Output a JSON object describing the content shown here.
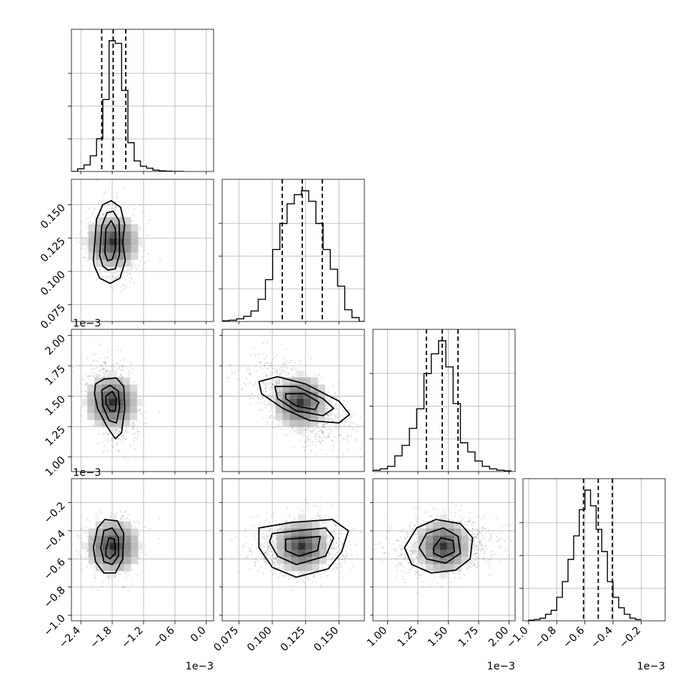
{
  "chart_data": {
    "type": "corner",
    "grid": true,
    "parameters": [
      {
        "ticks": [
          -2.4,
          -1.8,
          -1.2,
          -0.6,
          0.0
        ],
        "tick_labels": [
          "−2.4",
          "−1.8",
          "−1.2",
          "−0.6",
          "0.0"
        ],
        "range": [
          -2.58,
          0.14
        ],
        "offset_text": "1e−3",
        "histogram": {
          "bin_width": 0.12,
          "bins": [
            [
              -2.52,
              0
            ],
            [
              -2.4,
              0.02
            ],
            [
              -2.28,
              0.05
            ],
            [
              -2.16,
              0.12
            ],
            [
              -2.04,
              0.25
            ],
            [
              -1.92,
              0.55
            ],
            [
              -1.8,
              1.0
            ],
            [
              -1.68,
              0.98
            ],
            [
              -1.56,
              0.62
            ],
            [
              -1.44,
              0.22
            ],
            [
              -1.32,
              0.08
            ],
            [
              -1.2,
              0.04
            ],
            [
              -1.08,
              0.025
            ],
            [
              -0.96,
              0.01
            ],
            [
              -0.84,
              0.005
            ],
            [
              -0.72,
              0.002
            ],
            [
              -0.6,
              0
            ],
            [
              -0.48,
              0
            ]
          ],
          "quantiles": [
            -2.0,
            -1.78,
            -1.54
          ]
        }
      },
      {
        "ticks": [
          0.075,
          0.1,
          0.125,
          0.15
        ],
        "tick_labels": [
          "0.075",
          "0.100",
          "0.125",
          "0.150"
        ],
        "range": [
          0.0625,
          0.169
        ],
        "histogram": {
          "bin_width": 0.0054,
          "bins": [
            [
              0.0652,
              0.005
            ],
            [
              0.0706,
              0.01
            ],
            [
              0.076,
              0.02
            ],
            [
              0.0814,
              0.04
            ],
            [
              0.0868,
              0.08
            ],
            [
              0.0922,
              0.17
            ],
            [
              0.0976,
              0.32
            ],
            [
              0.103,
              0.55
            ],
            [
              0.1084,
              0.75
            ],
            [
              0.1138,
              0.9
            ],
            [
              0.1192,
              0.97
            ],
            [
              0.1246,
              1.0
            ],
            [
              0.13,
              0.92
            ],
            [
              0.1354,
              0.75
            ],
            [
              0.1408,
              0.55
            ],
            [
              0.1462,
              0.4
            ],
            [
              0.1516,
              0.27
            ],
            [
              0.157,
              0.09
            ],
            [
              0.1624,
              0.03
            ],
            [
              0.1678,
              0.0
            ]
          ],
          "quantiles": [
            0.1075,
            0.1225,
            0.1375
          ]
        }
      },
      {
        "ticks": [
          1.0,
          1.25,
          1.5,
          1.75,
          2.0
        ],
        "tick_labels": [
          "1.00",
          "1.25",
          "1.50",
          "1.75",
          "2.00"
        ],
        "range": [
          0.88,
          2.05
        ],
        "offset_text": "1e−3",
        "histogram": {
          "bin_width": 0.06,
          "bins": [
            [
              0.91,
              0.01
            ],
            [
              0.97,
              0.02
            ],
            [
              1.03,
              0.04
            ],
            [
              1.09,
              0.12
            ],
            [
              1.15,
              0.2
            ],
            [
              1.21,
              0.33
            ],
            [
              1.27,
              0.48
            ],
            [
              1.33,
              0.75
            ],
            [
              1.39,
              0.9
            ],
            [
              1.45,
              1.0
            ],
            [
              1.51,
              0.8
            ],
            [
              1.57,
              0.52
            ],
            [
              1.63,
              0.22
            ],
            [
              1.69,
              0.15
            ],
            [
              1.75,
              0.08
            ],
            [
              1.81,
              0.04
            ],
            [
              1.87,
              0.02
            ],
            [
              1.93,
              0.01
            ],
            [
              1.99,
              0.005
            ]
          ],
          "quantiles": [
            1.32,
            1.45,
            1.58
          ]
        }
      },
      {
        "ticks": [
          -1.0,
          -0.8,
          -0.6,
          -0.4,
          -0.2
        ],
        "tick_labels": [
          "−1.0",
          "−0.8",
          "−0.6",
          "−0.4",
          "−0.2"
        ],
        "range": [
          -1.04,
          -0.03
        ],
        "offset_text": "1e−3",
        "histogram": {
          "bin_width": 0.04,
          "bins": [
            [
              -0.98,
              0.005
            ],
            [
              -0.94,
              0.01
            ],
            [
              -0.9,
              0.02
            ],
            [
              -0.86,
              0.05
            ],
            [
              -0.82,
              0.08
            ],
            [
              -0.78,
              0.18
            ],
            [
              -0.74,
              0.3
            ],
            [
              -0.7,
              0.47
            ],
            [
              -0.66,
              0.65
            ],
            [
              -0.62,
              0.85
            ],
            [
              -0.58,
              1.0
            ],
            [
              -0.54,
              0.88
            ],
            [
              -0.5,
              0.7
            ],
            [
              -0.46,
              0.53
            ],
            [
              -0.42,
              0.3
            ],
            [
              -0.38,
              0.18
            ],
            [
              -0.34,
              0.1
            ],
            [
              -0.3,
              0.05
            ],
            [
              -0.26,
              0.02
            ],
            [
              -0.22,
              0.01
            ]
          ],
          "quantiles": [
            -0.61,
            -0.505,
            -0.405
          ]
        }
      }
    ],
    "pairs": [
      {
        "row": 1,
        "col": 0,
        "center": [
          -1.78,
          0.122
        ],
        "sd": [
          0.19,
          0.013
        ],
        "corr": -0.1,
        "n_scatter": 1100,
        "contours": [
          [
            [
              -2.16,
              0.108
            ],
            [
              -2.1,
              0.139
            ],
            [
              -1.98,
              0.15
            ],
            [
              -1.82,
              0.153
            ],
            [
              -1.64,
              0.148
            ],
            [
              -1.56,
              0.135
            ],
            [
              -1.6,
              0.122
            ],
            [
              -1.55,
              0.108
            ],
            [
              -1.65,
              0.095
            ],
            [
              -1.84,
              0.091
            ],
            [
              -2.04,
              0.095
            ],
            [
              -2.14,
              0.104
            ]
          ],
          [
            [
              -2.04,
              0.112
            ],
            [
              -2.0,
              0.134
            ],
            [
              -1.9,
              0.144
            ],
            [
              -1.78,
              0.145
            ],
            [
              -1.67,
              0.138
            ],
            [
              -1.66,
              0.125
            ],
            [
              -1.66,
              0.113
            ],
            [
              -1.74,
              0.102
            ],
            [
              -1.88,
              0.101
            ],
            [
              -1.98,
              0.104
            ]
          ],
          [
            [
              -1.94,
              0.114
            ],
            [
              -1.92,
              0.132
            ],
            [
              -1.82,
              0.138
            ],
            [
              -1.74,
              0.132
            ],
            [
              -1.74,
              0.117
            ],
            [
              -1.8,
              0.109
            ],
            [
              -1.89,
              0.108
            ]
          ]
        ]
      },
      {
        "row": 2,
        "col": 0,
        "center": [
          -1.8,
          1.45
        ],
        "sd": [
          0.19,
          0.16
        ],
        "corr": -0.35,
        "n_scatter": 1100,
        "contours": [
          [
            [
              -2.12,
              1.6
            ],
            [
              -1.96,
              1.64
            ],
            [
              -1.72,
              1.65
            ],
            [
              -1.58,
              1.58
            ],
            [
              -1.56,
              1.4
            ],
            [
              -1.62,
              1.2
            ],
            [
              -1.74,
              1.15
            ],
            [
              -1.9,
              1.25
            ],
            [
              -2.08,
              1.4
            ],
            [
              -2.14,
              1.52
            ]
          ],
          [
            [
              -2.0,
              1.55
            ],
            [
              -1.84,
              1.59
            ],
            [
              -1.68,
              1.54
            ],
            [
              -1.66,
              1.4
            ],
            [
              -1.72,
              1.28
            ],
            [
              -1.86,
              1.3
            ],
            [
              -1.98,
              1.42
            ]
          ],
          [
            [
              -1.92,
              1.5
            ],
            [
              -1.8,
              1.54
            ],
            [
              -1.72,
              1.48
            ],
            [
              -1.74,
              1.38
            ],
            [
              -1.84,
              1.38
            ],
            [
              -1.92,
              1.44
            ]
          ]
        ]
      },
      {
        "row": 2,
        "col": 1,
        "center": [
          0.121,
          1.45
        ],
        "sd": [
          0.014,
          0.16
        ],
        "corr": -0.6,
        "n_scatter": 1300,
        "contours": [
          [
            [
              0.09,
              1.62
            ],
            [
              0.104,
              1.66
            ],
            [
              0.125,
              1.6
            ],
            [
              0.15,
              1.46
            ],
            [
              0.158,
              1.35
            ],
            [
              0.15,
              1.28
            ],
            [
              0.128,
              1.3
            ],
            [
              0.108,
              1.4
            ],
            [
              0.092,
              1.52
            ]
          ],
          [
            [
              0.102,
              1.58
            ],
            [
              0.118,
              1.58
            ],
            [
              0.138,
              1.48
            ],
            [
              0.146,
              1.4
            ],
            [
              0.138,
              1.34
            ],
            [
              0.118,
              1.38
            ],
            [
              0.104,
              1.48
            ]
          ],
          [
            [
              0.11,
              1.52
            ],
            [
              0.124,
              1.52
            ],
            [
              0.135,
              1.45
            ],
            [
              0.132,
              1.39
            ],
            [
              0.118,
              1.42
            ],
            [
              0.11,
              1.48
            ]
          ]
        ]
      },
      {
        "row": 3,
        "col": 0,
        "center": [
          -1.78,
          -0.51
        ],
        "sd": [
          0.19,
          0.1
        ],
        "corr": 0.05,
        "n_scatter": 1100,
        "contours": [
          [
            [
              -2.16,
              -0.52
            ],
            [
              -2.08,
              -0.38
            ],
            [
              -1.94,
              -0.32
            ],
            [
              -1.7,
              -0.33
            ],
            [
              -1.58,
              -0.42
            ],
            [
              -1.6,
              -0.6
            ],
            [
              -1.74,
              -0.7
            ],
            [
              -1.96,
              -0.7
            ],
            [
              -2.12,
              -0.62
            ]
          ],
          [
            [
              -2.02,
              -0.52
            ],
            [
              -1.96,
              -0.4
            ],
            [
              -1.8,
              -0.38
            ],
            [
              -1.68,
              -0.45
            ],
            [
              -1.68,
              -0.58
            ],
            [
              -1.8,
              -0.64
            ],
            [
              -1.96,
              -0.62
            ]
          ],
          [
            [
              -1.92,
              -0.53
            ],
            [
              -1.86,
              -0.45
            ],
            [
              -1.76,
              -0.46
            ],
            [
              -1.74,
              -0.56
            ],
            [
              -1.84,
              -0.6
            ],
            [
              -1.92,
              -0.58
            ]
          ]
        ]
      },
      {
        "row": 3,
        "col": 1,
        "center": [
          0.122,
          -0.51
        ],
        "sd": [
          0.014,
          0.1
        ],
        "corr": 0.1,
        "n_scatter": 1300,
        "contours": [
          [
            [
              0.09,
              -0.38
            ],
            [
              0.115,
              -0.34
            ],
            [
              0.145,
              -0.32
            ],
            [
              0.157,
              -0.4
            ],
            [
              0.152,
              -0.55
            ],
            [
              0.142,
              -0.67
            ],
            [
              0.118,
              -0.73
            ],
            [
              0.1,
              -0.66
            ],
            [
              0.09,
              -0.52
            ]
          ],
          [
            [
              0.1,
              -0.42
            ],
            [
              0.118,
              -0.4
            ],
            [
              0.14,
              -0.38
            ],
            [
              0.146,
              -0.45
            ],
            [
              0.14,
              -0.58
            ],
            [
              0.118,
              -0.64
            ],
            [
              0.104,
              -0.58
            ],
            [
              0.098,
              -0.48
            ]
          ],
          [
            [
              0.11,
              -0.46
            ],
            [
              0.124,
              -0.45
            ],
            [
              0.136,
              -0.44
            ],
            [
              0.134,
              -0.54
            ],
            [
              0.12,
              -0.58
            ],
            [
              0.11,
              -0.54
            ]
          ]
        ]
      },
      {
        "row": 3,
        "col": 2,
        "center": [
          1.46,
          -0.51
        ],
        "sd": [
          0.16,
          0.1
        ],
        "corr": 0.1,
        "n_scatter": 1300,
        "contours": [
          [
            [
              1.14,
              -0.52
            ],
            [
              1.24,
              -0.38
            ],
            [
              1.4,
              -0.32
            ],
            [
              1.6,
              -0.35
            ],
            [
              1.7,
              -0.45
            ],
            [
              1.68,
              -0.6
            ],
            [
              1.56,
              -0.68
            ],
            [
              1.36,
              -0.7
            ],
            [
              1.2,
              -0.64
            ]
          ],
          [
            [
              1.26,
              -0.52
            ],
            [
              1.32,
              -0.42
            ],
            [
              1.46,
              -0.38
            ],
            [
              1.58,
              -0.44
            ],
            [
              1.6,
              -0.56
            ],
            [
              1.48,
              -0.63
            ],
            [
              1.32,
              -0.6
            ]
          ],
          [
            [
              1.38,
              -0.52
            ],
            [
              1.44,
              -0.45
            ],
            [
              1.54,
              -0.47
            ],
            [
              1.55,
              -0.55
            ],
            [
              1.45,
              -0.59
            ],
            [
              1.38,
              -0.56
            ]
          ]
        ]
      }
    ]
  }
}
